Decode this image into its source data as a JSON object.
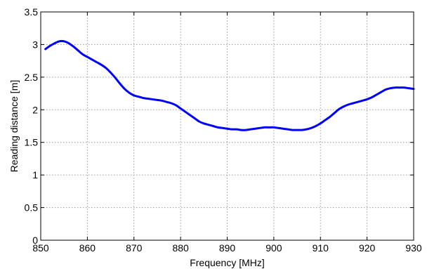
{
  "chart_data": {
    "type": "line",
    "xlabel": "Frequency [MHz]",
    "ylabel": "Reading distance [m]",
    "xlim": [
      850,
      930
    ],
    "ylim": [
      0,
      3.5
    ],
    "xticks": [
      850,
      860,
      870,
      880,
      890,
      900,
      910,
      920,
      930
    ],
    "yticks": [
      0,
      0.5,
      1,
      1.5,
      2,
      2.5,
      3,
      3.5
    ],
    "xtick_labels": [
      "850",
      "860",
      "870",
      "880",
      "890",
      "900",
      "910",
      "920",
      "930"
    ],
    "ytick_labels": [
      "0",
      "0.5",
      "1",
      "1.5",
      "2",
      "2.5",
      "3",
      "3.5"
    ],
    "grid": true,
    "series": [
      {
        "color": "#0000ff",
        "x": [
          851,
          852,
          853,
          854,
          855,
          856,
          857,
          858,
          859,
          860,
          861,
          862,
          863,
          864,
          865,
          866,
          867,
          868,
          869,
          870,
          871,
          872,
          873,
          874,
          875,
          876,
          877,
          878,
          879,
          880,
          881,
          882,
          883,
          884,
          885,
          886,
          887,
          888,
          889,
          890,
          891,
          892,
          893,
          894,
          895,
          896,
          897,
          898,
          899,
          900,
          901,
          902,
          903,
          904,
          905,
          906,
          907,
          908,
          909,
          910,
          911,
          912,
          913,
          914,
          915,
          916,
          917,
          918,
          919,
          920,
          921,
          922,
          923,
          924,
          925,
          926,
          927,
          928,
          929,
          930
        ],
        "values": [
          2.93,
          2.98,
          3.02,
          3.05,
          3.05,
          3.02,
          2.97,
          2.91,
          2.85,
          2.81,
          2.77,
          2.73,
          2.69,
          2.64,
          2.57,
          2.49,
          2.4,
          2.32,
          2.26,
          2.22,
          2.2,
          2.18,
          2.17,
          2.16,
          2.15,
          2.14,
          2.12,
          2.1,
          2.07,
          2.02,
          1.97,
          1.92,
          1.87,
          1.82,
          1.79,
          1.77,
          1.75,
          1.73,
          1.72,
          1.71,
          1.7,
          1.7,
          1.69,
          1.69,
          1.7,
          1.71,
          1.72,
          1.73,
          1.73,
          1.73,
          1.72,
          1.71,
          1.7,
          1.69,
          1.69,
          1.69,
          1.7,
          1.72,
          1.75,
          1.79,
          1.84,
          1.89,
          1.95,
          2.01,
          2.05,
          2.08,
          2.1,
          2.12,
          2.14,
          2.16,
          2.19,
          2.23,
          2.27,
          2.31,
          2.33,
          2.34,
          2.34,
          2.34,
          2.33,
          2.32
        ]
      }
    ]
  }
}
